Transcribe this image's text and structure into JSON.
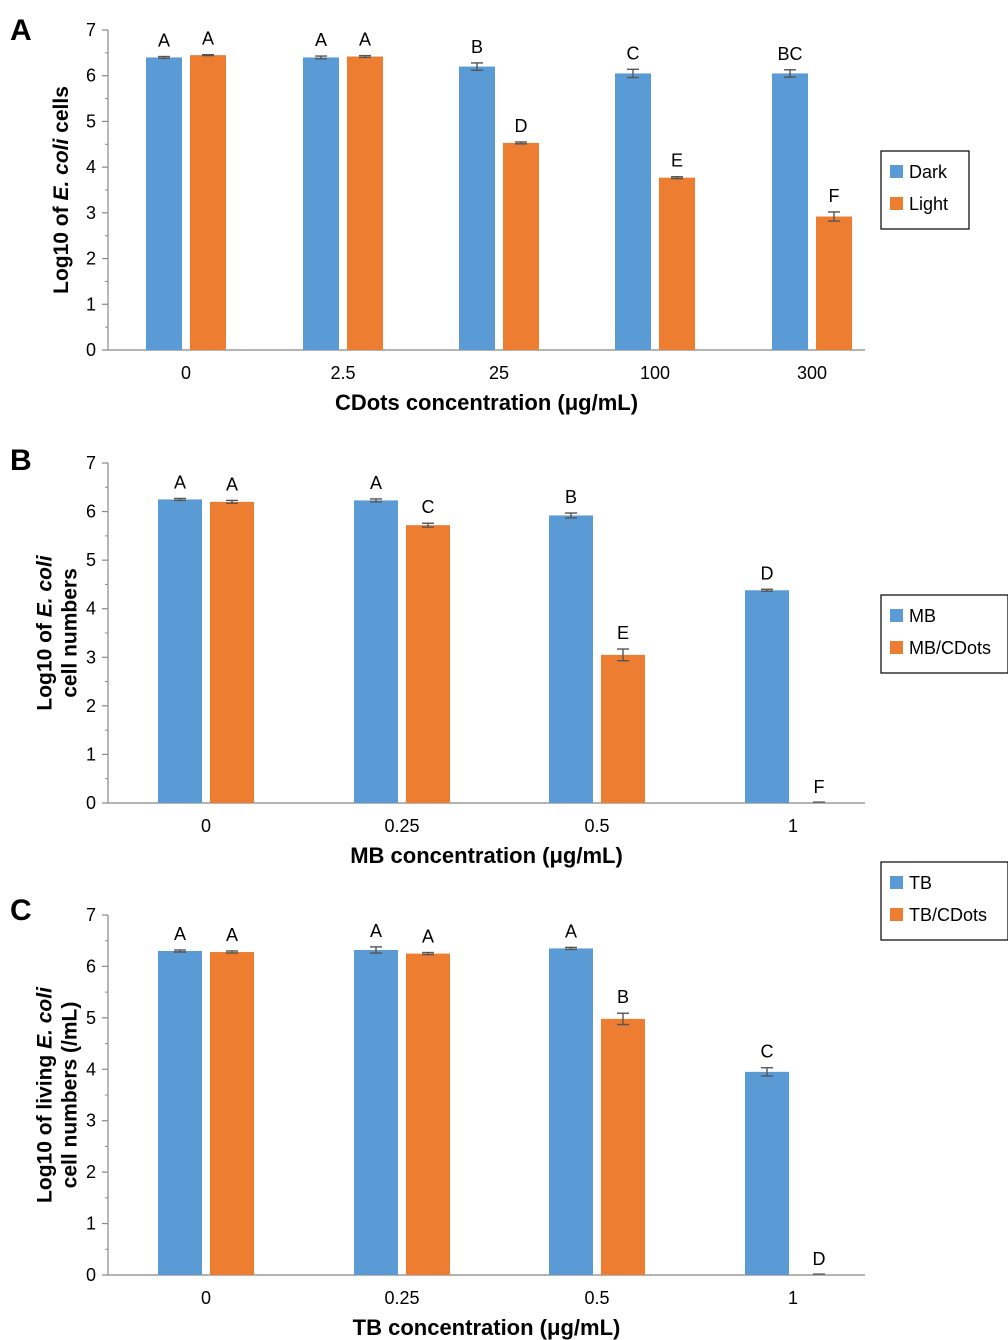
{
  "colors": {
    "series1": "#5b9bd5",
    "series2": "#ed7d31",
    "axis": "#888888",
    "errorbar": "#555555"
  },
  "chart_data": [
    {
      "panel": "A",
      "type": "bar",
      "xlabel": "CDots concentration (μg/mL)",
      "ylabel_parts": [
        {
          "text": "Log10 of ",
          "italic": false
        },
        {
          "text": "E. coli",
          "italic": true
        },
        {
          "text": " cells",
          "italic": false
        }
      ],
      "ylim": [
        0,
        7
      ],
      "yticks": [
        0,
        1,
        2,
        3,
        4,
        5,
        6,
        7
      ],
      "categories": [
        "0",
        "2.5",
        "25",
        "100",
        "300"
      ],
      "series": [
        {
          "name": "Dark",
          "values": [
            6.4,
            6.4,
            6.2,
            6.05,
            6.05
          ],
          "errors": [
            0.02,
            0.03,
            0.08,
            0.09,
            0.08
          ],
          "labels": [
            "A",
            "A",
            "B",
            "C",
            "BC"
          ]
        },
        {
          "name": "Light",
          "values": [
            6.45,
            6.42,
            4.53,
            3.77,
            2.92
          ],
          "errors": [
            0.01,
            0.02,
            0.02,
            0.02,
            0.1
          ],
          "labels": [
            "A",
            "A",
            "D",
            "E",
            "F"
          ]
        }
      ],
      "legend_position": "right"
    },
    {
      "panel": "B",
      "type": "bar",
      "xlabel": "MB concentration (μg/mL)",
      "ylabel_parts": [
        {
          "text": "Log10 of ",
          "italic": false
        },
        {
          "text": "E. coli",
          "italic": true
        },
        {
          "text": "\ncell numbers",
          "italic": false
        }
      ],
      "ylim": [
        0,
        7
      ],
      "yticks": [
        0,
        1,
        2,
        3,
        4,
        5,
        6,
        7
      ],
      "categories": [
        "0",
        "0.25",
        "0.5",
        "1"
      ],
      "series": [
        {
          "name": "MB",
          "values": [
            6.25,
            6.23,
            5.92,
            4.38
          ],
          "errors": [
            0.02,
            0.03,
            0.05,
            0.02
          ],
          "labels": [
            "A",
            "A",
            "B",
            "D"
          ]
        },
        {
          "name": "MB/CDots",
          "values": [
            6.2,
            5.72,
            3.05,
            0.0
          ],
          "errors": [
            0.03,
            0.04,
            0.12,
            0.0
          ],
          "labels": [
            "A",
            "C",
            "E",
            "F"
          ]
        }
      ],
      "legend_position": "right"
    },
    {
      "panel": "C",
      "type": "bar",
      "xlabel": "TB concentration (μg/mL)",
      "ylabel_parts": [
        {
          "text": "Log10 of living ",
          "italic": false
        },
        {
          "text": "E. coli",
          "italic": true
        },
        {
          "text": "\ncell numbers (/mL)",
          "italic": false
        }
      ],
      "ylim": [
        0,
        7
      ],
      "yticks": [
        0,
        1,
        2,
        3,
        4,
        5,
        6,
        7
      ],
      "categories": [
        "0",
        "0.25",
        "0.5",
        "1"
      ],
      "series": [
        {
          "name": "TB",
          "values": [
            6.3,
            6.32,
            6.35,
            3.95
          ],
          "errors": [
            0.02,
            0.06,
            0.02,
            0.08
          ],
          "labels": [
            "A",
            "A",
            "A",
            "C"
          ]
        },
        {
          "name": "TB/CDots",
          "values": [
            6.28,
            6.25,
            4.98,
            0.0
          ],
          "errors": [
            0.02,
            0.02,
            0.11,
            0.0
          ],
          "labels": [
            "A",
            "A",
            "B",
            "D"
          ]
        }
      ],
      "legend_position": "right"
    }
  ]
}
